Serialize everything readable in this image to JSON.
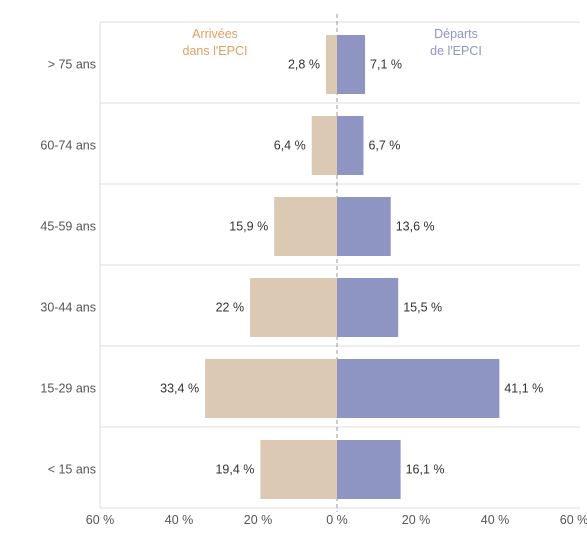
{
  "chart_data": {
    "type": "bar",
    "orientation": "horizontal-diverging",
    "categories": [
      "> 75 ans",
      "60-74 ans",
      "45-59 ans",
      "30-44 ans",
      "15-29 ans",
      "< 15 ans"
    ],
    "series": [
      {
        "name": "Arrivées dans l'EPCI",
        "name_lines": [
          "Arrivées",
          "dans l'EPCI"
        ],
        "values": [
          2.8,
          6.4,
          15.9,
          22,
          33.4,
          19.4
        ],
        "labels": [
          "2,8 %",
          "6,4 %",
          "15,9 %",
          "22 %",
          "33,4 %",
          "19,4 %"
        ],
        "side": "left",
        "color": "#dcc9b4",
        "legend_color": "#e0a060"
      },
      {
        "name": "Départs de l'EPCI",
        "name_lines": [
          "Départs",
          "de l'EPCI"
        ],
        "values": [
          7.1,
          6.7,
          13.6,
          15.5,
          41.1,
          16.1
        ],
        "labels": [
          "7,1 %",
          "6,7 %",
          "13,6 %",
          "15,5 %",
          "41,1 %",
          "16,1 %"
        ],
        "side": "right",
        "color": "#8e95c3",
        "legend_color": "#8e95c3"
      }
    ],
    "x_ticks": [
      "60 %",
      "40 %",
      "20 %",
      "0 %",
      "20 %",
      "40 %",
      "60 %"
    ],
    "xlim": [
      -60,
      60
    ],
    "grid": true,
    "legend": "top-center"
  }
}
